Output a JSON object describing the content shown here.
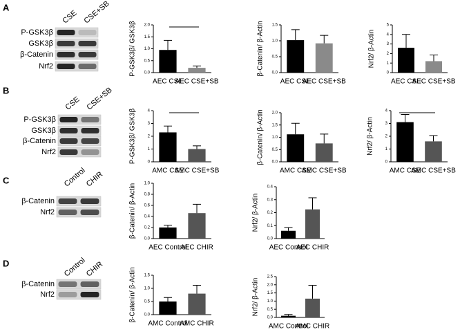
{
  "blots": [
    {
      "panel": "A",
      "lanes": [
        "CSE",
        "CSE+SB"
      ],
      "bands": [
        "P-GSK3β",
        "GSK3β",
        "β-Catenin",
        "Nrf2"
      ]
    },
    {
      "panel": "B",
      "lanes": [
        "CSE",
        "CSE+SB"
      ],
      "bands": [
        "P-GSK3β",
        "GSK3β",
        "β-Catenin",
        "Nrf2"
      ]
    },
    {
      "panel": "C",
      "lanes": [
        "Control",
        "CHIR"
      ],
      "bands": [
        "β-Catenin",
        "Nrf2"
      ]
    },
    {
      "panel": "D",
      "lanes": [
        "Control",
        "CHIR"
      ],
      "bands": [
        "β-Catenin",
        "Nrf2"
      ]
    }
  ],
  "chart_data": [
    {
      "type": "bar",
      "ylabel": "P-GSK3β/ GSK3β",
      "categories": [
        "AEC CSE",
        "AEC CSE+SB"
      ],
      "values": [
        0.95,
        0.2
      ],
      "errors": [
        0.4,
        0.08
      ],
      "colors": [
        "#000000",
        "#8a8a8a"
      ],
      "ylim": [
        0,
        2
      ],
      "yticks": [
        {
          "value": 0,
          "label": "0.0"
        },
        {
          "value": 0.5,
          "label": "0.5"
        },
        {
          "value": 1,
          "label": "1.0"
        },
        {
          "value": 1.5,
          "label": "1.5"
        },
        {
          "value": 2,
          "label": "2.0"
        }
      ]
    },
    {
      "type": "bar",
      "ylabel": "β-Catenin/ β-Actin",
      "categories": [
        "AEC CSE",
        "AEC CSE+SB"
      ],
      "values": [
        1.02,
        0.92
      ],
      "errors": [
        0.33,
        0.25
      ],
      "colors": [
        "#000000",
        "#8a8a8a"
      ],
      "ylim": [
        0,
        1.5
      ],
      "yticks": [
        {
          "value": 0,
          "label": "0.0"
        },
        {
          "value": 0.5,
          "label": "0.5"
        },
        {
          "value": 1,
          "label": "1.0"
        },
        {
          "value": 1.5,
          "label": "1.5"
        }
      ]
    },
    {
      "type": "bar",
      "ylabel": "Nrf2/ β-Actin",
      "categories": [
        "AEC CSE",
        "AEC CSE+SB"
      ],
      "values": [
        2.6,
        1.2
      ],
      "errors": [
        1.4,
        0.65
      ],
      "colors": [
        "#000000",
        "#8a8a8a"
      ],
      "ylim": [
        0,
        5
      ],
      "yticks": [
        0,
        1,
        2,
        3,
        4,
        5
      ]
    },
    {
      "type": "bar",
      "ylabel": "P-GSK3β/ GSK3β",
      "categories": [
        "AMC CSE",
        "AMC CSE+SB"
      ],
      "values": [
        2.3,
        1.0
      ],
      "errors": [
        0.5,
        0.25
      ],
      "colors": [
        "#000000",
        "#555555"
      ],
      "ylim": [
        0,
        4
      ],
      "yticks": [
        0,
        1,
        2,
        3,
        4
      ]
    },
    {
      "type": "bar",
      "ylabel": "β-Catenin/ β-Actin",
      "categories": [
        "AMC CSE",
        "AMC CSE+SB"
      ],
      "values": [
        1.12,
        0.75
      ],
      "errors": [
        0.45,
        0.38
      ],
      "colors": [
        "#000000",
        "#555555"
      ],
      "ylim": [
        0,
        2
      ],
      "yticks": [
        {
          "value": 0,
          "label": "0.0"
        },
        {
          "value": 0.5,
          "label": "0.5"
        },
        {
          "value": 1,
          "label": "1.0"
        },
        {
          "value": 1.5,
          "label": "1.5"
        },
        {
          "value": 2,
          "label": "2.0"
        }
      ]
    },
    {
      "type": "bar",
      "ylabel": "Nrf2/ β-Actin",
      "categories": [
        "AMC CSE",
        "AMC CSE+SB"
      ],
      "values": [
        3.1,
        1.6
      ],
      "errors": [
        0.6,
        0.45
      ],
      "colors": [
        "#000000",
        "#555555"
      ],
      "ylim": [
        0,
        4
      ],
      "yticks": [
        0,
        1,
        2,
        3,
        4
      ]
    },
    {
      "type": "bar",
      "ylabel": "β-Catenin/ β-Actin",
      "categories": [
        "AEC Control",
        "AEC CHIR"
      ],
      "values": [
        0.2,
        0.46
      ],
      "errors": [
        0.04,
        0.16
      ],
      "colors": [
        "#000000",
        "#555555"
      ],
      "ylim": [
        0,
        1
      ],
      "yticks": [
        {
          "value": 0,
          "label": "0.0"
        },
        {
          "value": 0.2,
          "label": "0.2"
        },
        {
          "value": 0.4,
          "label": "0.4"
        },
        {
          "value": 0.6,
          "label": "0.6"
        },
        {
          "value": 0.8,
          "label": "0.8"
        },
        {
          "value": 1,
          "label": "1.0"
        }
      ]
    },
    {
      "type": "bar",
      "ylabel": "Nrf2/ β-Actin",
      "categories": [
        "AEC Control",
        "AEC CHIR"
      ],
      "values": [
        0.06,
        0.225
      ],
      "errors": [
        0.025,
        0.09
      ],
      "colors": [
        "#000000",
        "#555555"
      ],
      "ylim": [
        0,
        0.4
      ],
      "yticks": [
        {
          "value": 0,
          "label": "0.0"
        },
        0.1,
        0.2,
        0.3,
        0.4
      ]
    },
    {
      "type": "bar",
      "ylabel": "β-Catenin/ β-Actin",
      "categories": [
        "AMC Control",
        "AMC CHIR"
      ],
      "values": [
        0.5,
        0.8
      ],
      "errors": [
        0.15,
        0.32
      ],
      "colors": [
        "#000000",
        "#555555"
      ],
      "ylim": [
        0,
        1.5
      ],
      "yticks": [
        {
          "value": 0,
          "label": "0.0"
        },
        {
          "value": 0.5,
          "label": "0.5"
        },
        {
          "value": 1,
          "label": "1.0"
        },
        {
          "value": 1.5,
          "label": "1.5"
        }
      ]
    },
    {
      "type": "bar",
      "ylabel": "Nrf2/ β-Actin",
      "categories": [
        "AMC Control",
        "AMC CHIR"
      ],
      "values": [
        0.1,
        1.15
      ],
      "errors": [
        0.08,
        0.82
      ],
      "colors": [
        "#000000",
        "#555555"
      ],
      "ylim": [
        0,
        2.5
      ],
      "yticks": [
        {
          "value": 0,
          "label": "0.0"
        },
        {
          "value": 0.5,
          "label": "0.5"
        },
        {
          "value": 1,
          "label": "1.0"
        },
        {
          "value": 1.5,
          "label": "1.5"
        },
        {
          "value": 2,
          "label": "2.0"
        },
        {
          "value": 2.5,
          "label": "2.5"
        }
      ]
    }
  ]
}
